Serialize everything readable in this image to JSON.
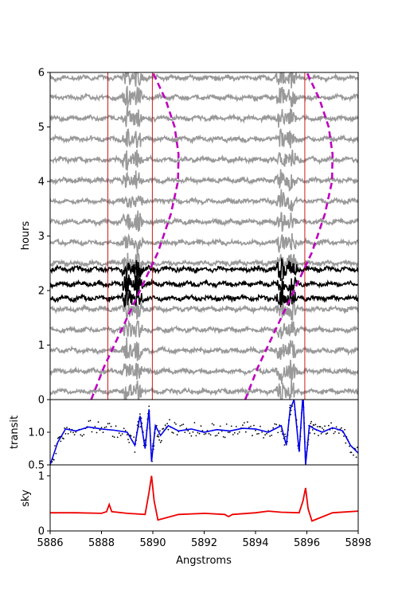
{
  "chart_data": [
    {
      "panel": "top",
      "type": "line",
      "xlabel": "",
      "ylabel": "hours",
      "xlim": [
        5886,
        5898
      ],
      "ylim": [
        0,
        6
      ],
      "yticks": [
        0,
        1,
        2,
        3,
        4,
        5,
        6
      ],
      "yticklabels": [
        "0",
        "1",
        "2",
        "3",
        "4",
        "5",
        "6"
      ],
      "gray_trace_hours": [
        0.15,
        0.52,
        0.9,
        1.28,
        1.66,
        2.5,
        2.88,
        3.26,
        3.64,
        4.02,
        4.4,
        4.78,
        5.16,
        5.54,
        5.9
      ],
      "black_trace_hours": [
        1.86,
        2.12,
        2.39
      ],
      "gray_color": "#999999",
      "black_color": "#000000",
      "vertical_lines_x": [
        5888.25,
        5889.98,
        5895.92
      ],
      "vertical_line_color": "#cc0000",
      "telluric_features_x": [
        5889.0,
        5889.4,
        5895.0,
        5895.4
      ],
      "curve_color": "#bf00bf",
      "planet_track_1": {
        "x": [
          5887.6,
          5888.1,
          5888.8,
          5889.5,
          5890.2,
          5890.7,
          5890.98,
          5891.0,
          5890.85,
          5890.5,
          5890.0
        ],
        "y": [
          0,
          0.6,
          1.3,
          2.0,
          2.7,
          3.4,
          4.0,
          4.5,
          5.0,
          5.5,
          6.0
        ]
      },
      "planet_track_2": {
        "x": [
          5893.6,
          5894.1,
          5894.8,
          5895.5,
          5896.2,
          5896.7,
          5896.98,
          5897.0,
          5896.85,
          5896.5,
          5896.0
        ],
        "y": [
          0,
          0.6,
          1.3,
          2.0,
          2.7,
          3.4,
          4.0,
          4.5,
          5.0,
          5.5,
          6.0
        ]
      }
    },
    {
      "panel": "middle",
      "type": "line",
      "xlabel": "",
      "ylabel": "transit",
      "xlim": [
        5886,
        5898
      ],
      "ylim": [
        0.5,
        1.5
      ],
      "yticks": [
        0.5,
        1.0
      ],
      "yticklabels": [
        "0.5",
        "1.0"
      ],
      "line_color": "#0000ee",
      "point_color": "#000000",
      "x": [
        5886,
        5886.3,
        5886.6,
        5887,
        5887.5,
        5888,
        5888.5,
        5889,
        5889.3,
        5889.5,
        5889.7,
        5889.85,
        5889.95,
        5890.1,
        5890.3,
        5890.6,
        5891,
        5891.5,
        5892,
        5892.5,
        5893,
        5893.5,
        5894,
        5894.5,
        5895,
        5895.2,
        5895.35,
        5895.5,
        5895.7,
        5895.85,
        5895.95,
        5896.1,
        5896.3,
        5896.6,
        5897,
        5897.4,
        5897.7,
        5898
      ],
      "y": [
        0.5,
        0.85,
        1.05,
        1.02,
        1.08,
        1.05,
        1.03,
        1.0,
        0.8,
        1.25,
        0.75,
        1.35,
        0.55,
        1.1,
        0.95,
        1.1,
        1.02,
        1.05,
        1.0,
        1.04,
        1.02,
        1.06,
        1.05,
        1.0,
        1.1,
        0.8,
        1.35,
        1.5,
        0.7,
        1.6,
        0.5,
        1.1,
        1.05,
        1.0,
        1.07,
        1.02,
        0.8,
        0.68
      ]
    },
    {
      "panel": "bottom",
      "type": "line",
      "xlabel": "Angstroms",
      "ylabel": "sky",
      "xlim": [
        5886,
        5898
      ],
      "ylim": [
        0,
        1.2
      ],
      "yticks": [
        0,
        1
      ],
      "yticklabels": [
        "0",
        "1"
      ],
      "xticks": [
        5886,
        5888,
        5890,
        5892,
        5894,
        5896,
        5898
      ],
      "xticklabels": [
        "5886",
        "5888",
        "5890",
        "5892",
        "5894",
        "5896",
        "5898"
      ],
      "line_color": "#ee0000",
      "x": [
        5886,
        5887,
        5888,
        5888.2,
        5888.3,
        5888.4,
        5889,
        5889.7,
        5889.85,
        5889.95,
        5890.05,
        5890.2,
        5891,
        5892,
        5892.8,
        5892.95,
        5893.1,
        5894,
        5894.5,
        5895,
        5895.7,
        5895.85,
        5895.95,
        5896.05,
        5896.2,
        5897,
        5898
      ],
      "y": [
        0.33,
        0.33,
        0.32,
        0.35,
        0.48,
        0.35,
        0.32,
        0.3,
        0.7,
        1.0,
        0.55,
        0.2,
        0.3,
        0.32,
        0.3,
        0.26,
        0.3,
        0.33,
        0.36,
        0.34,
        0.33,
        0.55,
        0.78,
        0.4,
        0.18,
        0.33,
        0.36
      ]
    }
  ]
}
